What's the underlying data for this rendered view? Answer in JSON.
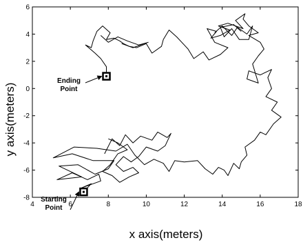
{
  "chart_data": {
    "type": "line",
    "title": "",
    "xlabel": "x axis(meters)",
    "ylabel": "y axis(meters)",
    "xlim": [
      4,
      18
    ],
    "ylim": [
      -8,
      6
    ],
    "x_ticks": [
      4,
      6,
      8,
      10,
      12,
      14,
      16,
      18
    ],
    "y_ticks": [
      -8,
      -6,
      -4,
      -2,
      0,
      2,
      4,
      6
    ],
    "x_tick_labels": [
      "4",
      "6",
      "8",
      "10",
      "12",
      "14",
      "16",
      "18"
    ],
    "y_tick_labels": [
      "-8",
      "-6",
      "-4",
      "-2",
      "0",
      "2",
      "4",
      "6"
    ],
    "grid": false,
    "line_color": "#000000",
    "annotations": [
      {
        "id": "start",
        "lines": [
          "Starting",
          "Point"
        ],
        "x": 6.7,
        "y": -7.6
      },
      {
        "id": "end",
        "lines": [
          "Ending",
          "Point"
        ],
        "x": 7.9,
        "y": 0.9
      }
    ],
    "series": [
      {
        "name": "",
        "points": [
          [
            6.7,
            -7.6
          ],
          [
            7.1,
            -7.0
          ],
          [
            6.6,
            -7.3
          ],
          [
            7.6,
            -6.8
          ],
          [
            7.5,
            -6.3
          ],
          [
            6.9,
            -6.7
          ],
          [
            6.1,
            -6.2
          ],
          [
            5.3,
            -6.7
          ],
          [
            6.6,
            -6.5
          ],
          [
            5.4,
            -5.7
          ],
          [
            6.4,
            -5.6
          ],
          [
            7.3,
            -6.3
          ],
          [
            8.0,
            -5.9
          ],
          [
            8.3,
            -5.3
          ],
          [
            7.2,
            -5.3
          ],
          [
            6.1,
            -4.8
          ],
          [
            5.1,
            -5.1
          ],
          [
            6.2,
            -4.3
          ],
          [
            7.4,
            -4.4
          ],
          [
            8.4,
            -4.6
          ],
          [
            9.0,
            -4.1
          ],
          [
            9.4,
            -4.9
          ],
          [
            9.9,
            -5.6
          ],
          [
            10.4,
            -5.2
          ],
          [
            10.9,
            -5.5
          ],
          [
            11.2,
            -6.1
          ],
          [
            11.5,
            -5.3
          ],
          [
            12.0,
            -5.4
          ],
          [
            12.7,
            -5.3
          ],
          [
            13.1,
            -5.9
          ],
          [
            13.5,
            -6.3
          ],
          [
            13.8,
            -5.8
          ],
          [
            14.1,
            -6.0
          ],
          [
            14.3,
            -6.4
          ],
          [
            14.6,
            -5.5
          ],
          [
            14.9,
            -5.9
          ],
          [
            15.0,
            -5.4
          ],
          [
            15.3,
            -4.9
          ],
          [
            15.2,
            -4.3
          ],
          [
            15.7,
            -3.8
          ],
          [
            16.0,
            -3.2
          ],
          [
            16.3,
            -3.4
          ],
          [
            16.7,
            -2.6
          ],
          [
            17.1,
            -2.1
          ],
          [
            16.6,
            -1.6
          ],
          [
            16.9,
            -1.0
          ],
          [
            16.3,
            -0.6
          ],
          [
            16.6,
            0.0
          ],
          [
            16.4,
            0.8
          ],
          [
            16.6,
            1.4
          ],
          [
            16.0,
            1.0
          ],
          [
            15.4,
            1.3
          ],
          [
            15.3,
            0.7
          ],
          [
            15.9,
            0.4
          ],
          [
            15.6,
            1.8
          ],
          [
            15.9,
            2.4
          ],
          [
            16.2,
            2.9
          ],
          [
            16.0,
            3.4
          ],
          [
            15.4,
            3.9
          ],
          [
            15.9,
            4.1
          ],
          [
            15.4,
            4.6
          ],
          [
            15.1,
            5.1
          ],
          [
            15.2,
            5.5
          ],
          [
            14.7,
            5.0
          ],
          [
            15.1,
            4.4
          ],
          [
            14.3,
            4.8
          ],
          [
            13.8,
            4.6
          ],
          [
            14.4,
            4.3
          ],
          [
            13.9,
            3.9
          ],
          [
            13.4,
            3.7
          ],
          [
            13.7,
            4.2
          ],
          [
            13.2,
            4.4
          ],
          [
            13.6,
            3.4
          ],
          [
            14.3,
            3.0
          ],
          [
            13.9,
            2.5
          ],
          [
            13.3,
            2.1
          ],
          [
            13.0,
            2.7
          ],
          [
            12.5,
            2.2
          ],
          [
            12.2,
            2.9
          ],
          [
            12.0,
            3.2
          ],
          [
            11.6,
            3.8
          ],
          [
            11.2,
            4.3
          ],
          [
            10.9,
            3.6
          ],
          [
            10.8,
            3.1
          ],
          [
            10.3,
            2.6
          ],
          [
            10.0,
            3.3
          ],
          [
            9.5,
            3.0
          ],
          [
            9.1,
            3.1
          ],
          [
            8.8,
            3.3
          ],
          [
            8.6,
            3.5
          ],
          [
            8.3,
            3.7
          ],
          [
            7.9,
            3.6
          ],
          [
            8.1,
            4.1
          ],
          [
            7.7,
            4.6
          ],
          [
            7.4,
            4.2
          ],
          [
            7.2,
            3.5
          ],
          [
            7.1,
            3.0
          ],
          [
            6.8,
            3.2
          ],
          [
            7.3,
            2.6
          ],
          [
            7.6,
            2.2
          ],
          [
            7.9,
            1.6
          ],
          [
            7.9,
            0.9
          ]
        ]
      },
      {
        "name": "",
        "points": [
          [
            7.8,
            -4.8
          ],
          [
            8.2,
            -3.7
          ],
          [
            8.6,
            -4.2
          ],
          [
            8.9,
            -3.4
          ],
          [
            9.3,
            -4.0
          ],
          [
            9.7,
            -3.5
          ],
          [
            10.3,
            -3.8
          ],
          [
            10.6,
            -3.2
          ],
          [
            11.1,
            -3.6
          ],
          [
            11.3,
            -3.3
          ],
          [
            11.0,
            -4.2
          ],
          [
            10.6,
            -4.6
          ],
          [
            10.0,
            -4.3
          ],
          [
            9.6,
            -5.0
          ],
          [
            9.2,
            -5.4
          ],
          [
            8.8,
            -5.0
          ],
          [
            8.4,
            -5.6
          ],
          [
            8.8,
            -6.1
          ],
          [
            9.3,
            -5.8
          ],
          [
            9.6,
            -6.2
          ],
          [
            9.1,
            -6.5
          ],
          [
            8.6,
            -6.9
          ],
          [
            8.2,
            -6.4
          ],
          [
            7.7,
            -6.1
          ],
          [
            8.1,
            -5.6
          ],
          [
            8.5,
            -4.8
          ],
          [
            9.0,
            -4.5
          ],
          [
            8.5,
            -4.0
          ],
          [
            8.0,
            -3.7
          ]
        ]
      },
      {
        "name": "",
        "points": [
          [
            13.6,
            4.1
          ],
          [
            14.0,
            4.6
          ],
          [
            14.5,
            3.9
          ],
          [
            14.8,
            4.5
          ],
          [
            15.3,
            4.0
          ],
          [
            15.6,
            4.6
          ],
          [
            15.4,
            3.6
          ],
          [
            14.9,
            3.6
          ],
          [
            14.5,
            4.4
          ],
          [
            14.1,
            3.8
          ],
          [
            13.9,
            4.5
          ],
          [
            14.6,
            4.7
          ],
          [
            15.0,
            4.2
          ]
        ]
      },
      {
        "name": "",
        "points": [
          [
            7.6,
            3.9
          ],
          [
            8.0,
            3.4
          ],
          [
            8.5,
            3.8
          ],
          [
            9.0,
            3.5
          ],
          [
            9.6,
            3.2
          ],
          [
            10.1,
            3.4
          ],
          [
            9.3,
            3.0
          ],
          [
            8.7,
            3.3
          ]
        ]
      }
    ]
  }
}
